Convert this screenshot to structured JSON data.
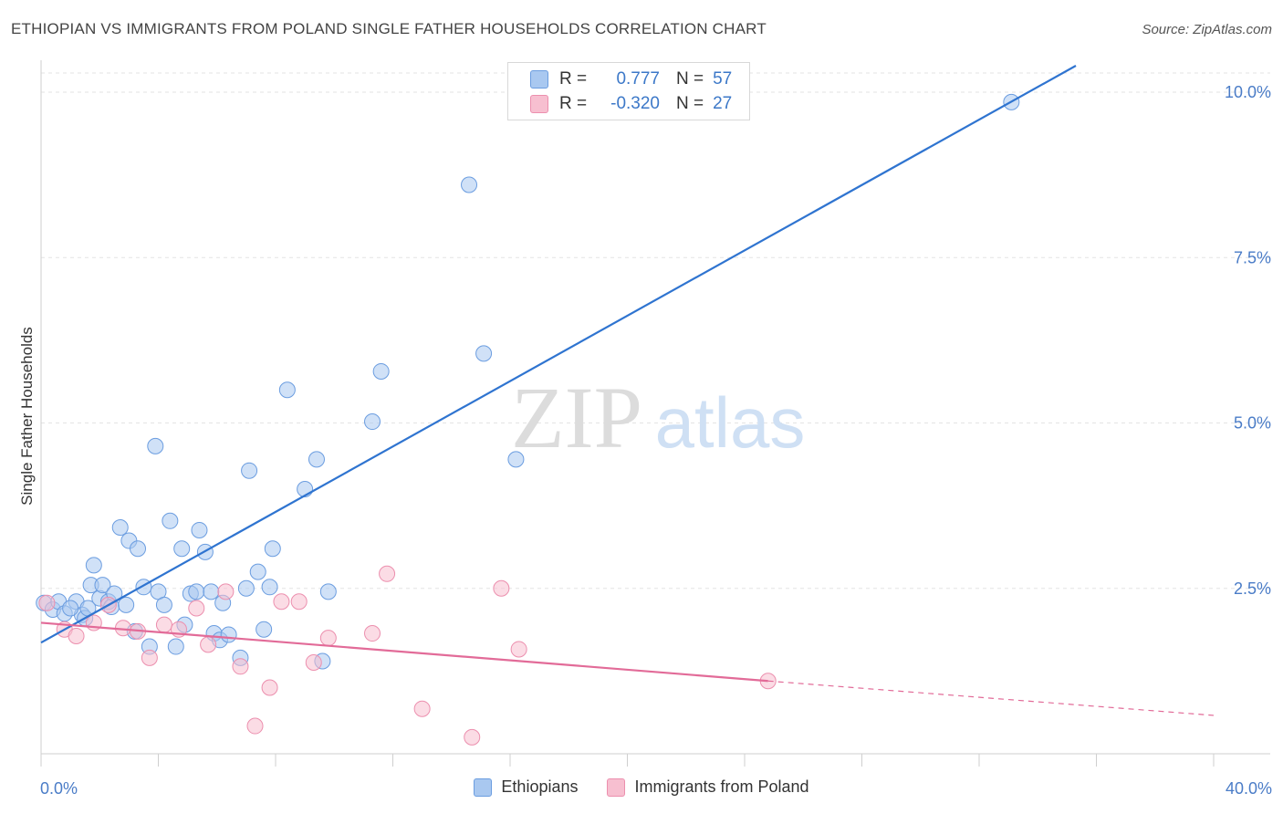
{
  "title": "ETHIOPIAN VS IMMIGRANTS FROM POLAND SINGLE FATHER HOUSEHOLDS CORRELATION CHART",
  "source": "Source: ZipAtlas.com",
  "watermark": {
    "zip": "ZIP",
    "atlas": "atlas"
  },
  "legend": {
    "rows": [
      {
        "r_label": "R =",
        "r_value": "0.777",
        "n_label": "N =",
        "n_value": "57",
        "color": "#a9c8f0",
        "stroke": "#6b9de0"
      },
      {
        "r_label": "R =",
        "r_value": "-0.320",
        "n_label": "N =",
        "n_value": "27",
        "color": "#f7bfd0",
        "stroke": "#ec8fae"
      }
    ]
  },
  "bottom_legend": [
    "Ethiopians",
    "Immigrants from Poland"
  ],
  "chart_data": {
    "type": "scatter",
    "title": "ETHIOPIAN VS IMMIGRANTS FROM POLAND SINGLE FATHER HOUSEHOLDS CORRELATION CHART",
    "xlabel": "",
    "ylabel": "Single Father Households",
    "xlim": [
      0,
      40
    ],
    "ylim": [
      0,
      10.4
    ],
    "x_tick_labels": [
      "0.0%",
      "40.0%"
    ],
    "y_ticks": [
      2.5,
      5.0,
      7.5,
      10.0
    ],
    "y_tick_labels": [
      "2.5%",
      "5.0%",
      "7.5%",
      "10.0%"
    ],
    "grid": true,
    "series": [
      {
        "name": "Ethiopians",
        "color": "#a9c8f0",
        "stroke": "#6b9de0",
        "line_color": "#2f74d0",
        "trend": {
          "x0": 0,
          "y0": 1.68,
          "x1": 35.3,
          "y1": 10.4,
          "dashed_to": null
        },
        "points": [
          [
            0.1,
            2.28
          ],
          [
            0.4,
            2.18
          ],
          [
            0.6,
            2.3
          ],
          [
            0.8,
            2.12
          ],
          [
            1.2,
            2.3
          ],
          [
            1.4,
            2.1
          ],
          [
            1.5,
            2.05
          ],
          [
            1.6,
            2.2
          ],
          [
            1.7,
            2.55
          ],
          [
            1.8,
            2.85
          ],
          [
            2.0,
            2.35
          ],
          [
            2.1,
            2.55
          ],
          [
            2.3,
            2.3
          ],
          [
            2.4,
            2.22
          ],
          [
            2.5,
            2.42
          ],
          [
            2.7,
            3.42
          ],
          [
            2.9,
            2.25
          ],
          [
            3.0,
            3.22
          ],
          [
            3.3,
            3.1
          ],
          [
            3.5,
            2.52
          ],
          [
            3.7,
            1.62
          ],
          [
            3.9,
            4.65
          ],
          [
            4.0,
            2.45
          ],
          [
            4.2,
            2.25
          ],
          [
            4.4,
            3.52
          ],
          [
            4.6,
            1.62
          ],
          [
            4.8,
            3.1
          ],
          [
            4.9,
            1.95
          ],
          [
            5.1,
            2.42
          ],
          [
            5.3,
            2.45
          ],
          [
            5.4,
            3.38
          ],
          [
            5.6,
            3.05
          ],
          [
            5.8,
            2.45
          ],
          [
            5.9,
            1.82
          ],
          [
            6.1,
            1.72
          ],
          [
            6.2,
            2.28
          ],
          [
            6.4,
            1.8
          ],
          [
            6.8,
            1.45
          ],
          [
            7.0,
            2.5
          ],
          [
            7.1,
            4.28
          ],
          [
            7.4,
            2.75
          ],
          [
            7.6,
            1.88
          ],
          [
            7.8,
            2.52
          ],
          [
            7.9,
            3.1
          ],
          [
            8.4,
            5.5
          ],
          [
            9.0,
            4.0
          ],
          [
            9.4,
            4.45
          ],
          [
            9.6,
            1.4
          ],
          [
            9.8,
            2.45
          ],
          [
            11.3,
            5.02
          ],
          [
            11.6,
            5.78
          ],
          [
            14.6,
            8.6
          ],
          [
            15.1,
            6.05
          ],
          [
            16.2,
            4.45
          ],
          [
            33.1,
            9.85
          ],
          [
            1.0,
            2.2
          ],
          [
            3.2,
            1.85
          ]
        ]
      },
      {
        "name": "Immigrants from Poland",
        "color": "#f7bfd0",
        "stroke": "#ec8fae",
        "line_color": "#e26b98",
        "trend": {
          "x0": 0,
          "y0": 1.98,
          "x1": 24.8,
          "y1": 1.1,
          "dashed_to": {
            "x": 40,
            "y": 0.58
          }
        },
        "points": [
          [
            0.2,
            2.28
          ],
          [
            0.8,
            1.88
          ],
          [
            1.2,
            1.78
          ],
          [
            1.8,
            1.98
          ],
          [
            2.3,
            2.25
          ],
          [
            2.8,
            1.9
          ],
          [
            3.3,
            1.85
          ],
          [
            3.7,
            1.45
          ],
          [
            4.2,
            1.95
          ],
          [
            4.7,
            1.88
          ],
          [
            5.3,
            2.2
          ],
          [
            5.7,
            1.65
          ],
          [
            6.3,
            2.45
          ],
          [
            6.8,
            1.32
          ],
          [
            7.3,
            0.42
          ],
          [
            7.8,
            1.0
          ],
          [
            8.2,
            2.3
          ],
          [
            8.8,
            2.3
          ],
          [
            9.3,
            1.38
          ],
          [
            9.8,
            1.75
          ],
          [
            11.3,
            1.82
          ],
          [
            11.8,
            2.72
          ],
          [
            13.0,
            0.68
          ],
          [
            14.7,
            0.25
          ],
          [
            15.7,
            2.5
          ],
          [
            16.3,
            1.58
          ],
          [
            24.8,
            1.1
          ]
        ]
      }
    ]
  }
}
